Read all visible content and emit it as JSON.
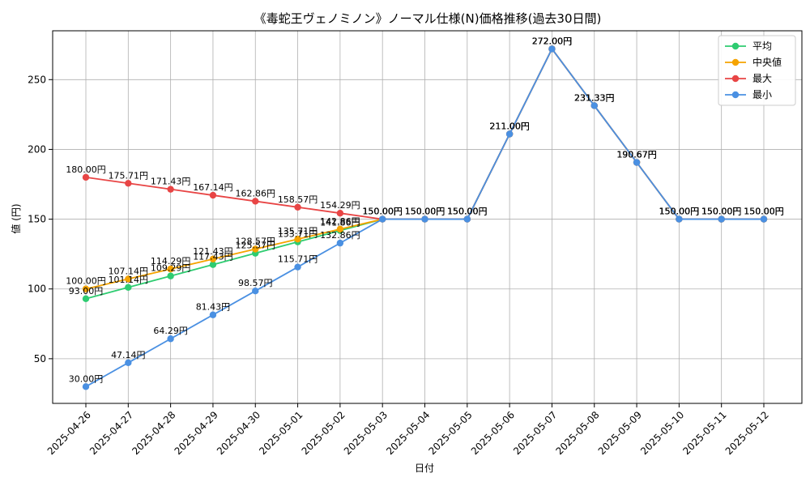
{
  "chart_data": {
    "type": "line",
    "title": "《毒蛇王ヴェノミノン》ノーマル仕様(N)価格推移(過去30日間)",
    "xlabel": "日付",
    "ylabel": "値 (円)",
    "ylim": [
      18,
      285
    ],
    "yticks": [
      50,
      100,
      150,
      200,
      250
    ],
    "grid": true,
    "legend_position": "top-right",
    "label_suffix": "円",
    "categories": [
      "2025-04-26",
      "2025-04-27",
      "2025-04-28",
      "2025-04-29",
      "2025-04-30",
      "2025-05-01",
      "2025-05-02",
      "2025-05-03",
      "2025-05-04",
      "2025-05-05",
      "2025-05-06",
      "2025-05-07",
      "2025-05-08",
      "2025-05-09",
      "2025-05-10",
      "2025-05-11",
      "2025-05-12"
    ],
    "series": [
      {
        "name": "平均",
        "color": "#2ecc71",
        "values": [
          93.0,
          101.14,
          109.29,
          117.43,
          125.57,
          133.71,
          141.86,
          150.0,
          150.0,
          150.0,
          211.0,
          272.0,
          231.33,
          190.67,
          150.0,
          150.0,
          150.0
        ]
      },
      {
        "name": "中央値",
        "color": "#f5a300",
        "values": [
          100.0,
          107.14,
          114.29,
          121.43,
          128.57,
          135.71,
          142.86,
          150.0,
          150.0,
          150.0,
          211.0,
          272.0,
          231.33,
          190.67,
          150.0,
          150.0,
          150.0
        ]
      },
      {
        "name": "最大",
        "color": "#e84545",
        "values": [
          180.0,
          175.71,
          171.43,
          167.14,
          162.86,
          158.57,
          154.29,
          150.0,
          150.0,
          150.0,
          211.0,
          272.0,
          231.33,
          190.67,
          150.0,
          150.0,
          150.0
        ]
      },
      {
        "name": "最小",
        "color": "#4a90e2",
        "values": [
          30.0,
          47.14,
          64.29,
          81.43,
          98.57,
          115.71,
          132.86,
          150.0,
          150.0,
          150.0,
          211.0,
          272.0,
          231.33,
          190.67,
          150.0,
          150.0,
          150.0
        ]
      }
    ]
  }
}
